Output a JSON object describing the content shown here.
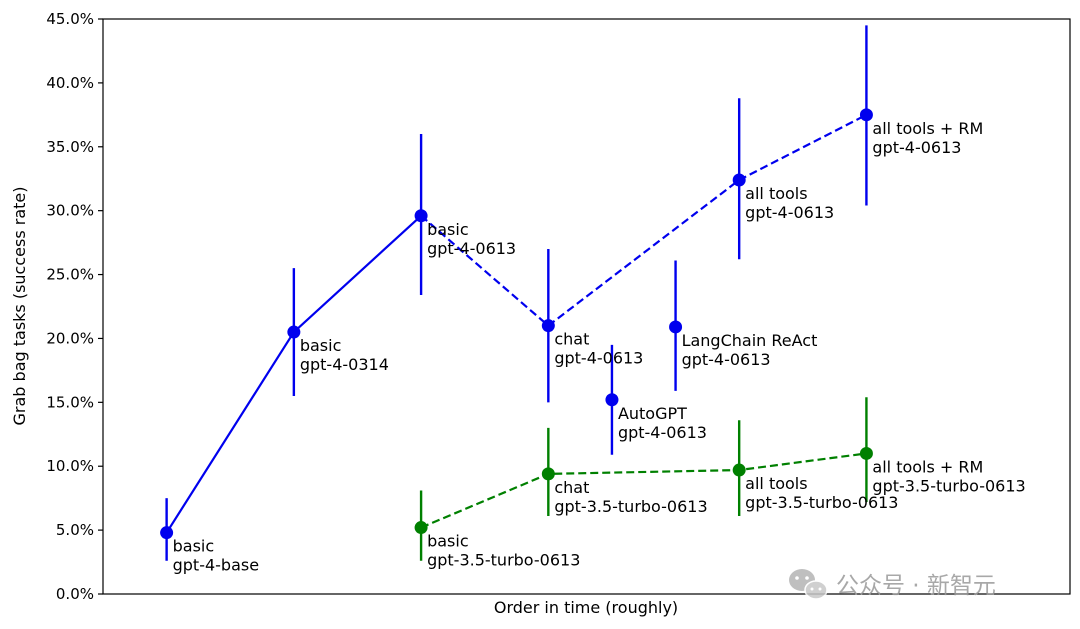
{
  "chart_data": {
    "type": "line",
    "title": "",
    "xlabel": "Order in time (roughly)",
    "ylabel": "Grab bag tasks (success rate)",
    "ylim": [
      0,
      45
    ],
    "y_ticks": [
      0,
      5,
      10,
      15,
      20,
      25,
      30,
      35,
      40,
      45
    ],
    "y_tick_labels": [
      "0.0%",
      "5.0%",
      "10.0%",
      "15.0%",
      "20.0%",
      "25.0%",
      "30.0%",
      "35.0%",
      "40.0%",
      "45.0%"
    ],
    "xlim": [
      0,
      7.6
    ],
    "x_ticks_shown": false,
    "grid": false,
    "legend": "none",
    "points": [
      {
        "x": 0.5,
        "y": 4.8,
        "err_low": 2.6,
        "err_high": 7.5,
        "series": "gpt-4",
        "line1": "basic",
        "line2": "gpt-4-base"
      },
      {
        "x": 1.5,
        "y": 20.5,
        "err_low": 15.5,
        "err_high": 25.5,
        "series": "gpt-4",
        "line1": "basic",
        "line2": "gpt-4-0314"
      },
      {
        "x": 2.5,
        "y": 29.6,
        "err_low": 23.4,
        "err_high": 36.0,
        "series": "gpt-4",
        "line1": "basic",
        "line2": "gpt-4-0613"
      },
      {
        "x": 3.5,
        "y": 21.0,
        "err_low": 15.0,
        "err_high": 27.0,
        "series": "gpt-4",
        "line1": "chat",
        "line2": "gpt-4-0613"
      },
      {
        "x": 4.0,
        "y": 15.2,
        "err_low": 10.9,
        "err_high": 19.5,
        "series": "gpt-4",
        "line1": "AutoGPT",
        "line2": "gpt-4-0613"
      },
      {
        "x": 4.5,
        "y": 20.9,
        "err_low": 15.9,
        "err_high": 26.1,
        "series": "gpt-4",
        "line1": "LangChain ReAct",
        "line2": "gpt-4-0613"
      },
      {
        "x": 5.0,
        "y": 32.4,
        "err_low": 26.2,
        "err_high": 38.8,
        "series": "gpt-4",
        "line1": "all tools",
        "line2": "gpt-4-0613"
      },
      {
        "x": 6.0,
        "y": 37.5,
        "err_low": 30.4,
        "err_high": 44.5,
        "series": "gpt-4",
        "line1": "all tools + RM",
        "line2": "gpt-4-0613"
      },
      {
        "x": 2.5,
        "y": 5.2,
        "err_low": 2.6,
        "err_high": 8.1,
        "series": "gpt-3.5",
        "line1": "basic",
        "line2": "gpt-3.5-turbo-0613"
      },
      {
        "x": 3.5,
        "y": 9.4,
        "err_low": 6.1,
        "err_high": 13.0,
        "series": "gpt-3.5",
        "line1": "chat",
        "line2": "gpt-3.5-turbo-0613"
      },
      {
        "x": 5.0,
        "y": 9.7,
        "err_low": 6.1,
        "err_high": 13.6,
        "series": "gpt-3.5",
        "line1": "all tools",
        "line2": "gpt-3.5-turbo-0613"
      },
      {
        "x": 6.0,
        "y": 11.0,
        "err_low": 7.2,
        "err_high": 15.4,
        "series": "gpt-3.5",
        "line1": "all tools + RM",
        "line2": "gpt-3.5-turbo-0613"
      }
    ],
    "lines": [
      {
        "series": "gpt-4",
        "style": "solid",
        "point_indices": [
          0,
          1,
          2
        ]
      },
      {
        "series": "gpt-4",
        "style": "dashed",
        "point_indices": [
          2,
          3,
          6,
          7
        ]
      },
      {
        "series": "gpt-3.5",
        "style": "dashed",
        "point_indices": [
          8,
          9,
          10,
          11
        ]
      }
    ],
    "colors": {
      "gpt-4": "#0000ee",
      "gpt-3.5": "#008000"
    }
  },
  "watermark": {
    "text": "公众号 · 新智元",
    "icon": "wechat-icon"
  }
}
